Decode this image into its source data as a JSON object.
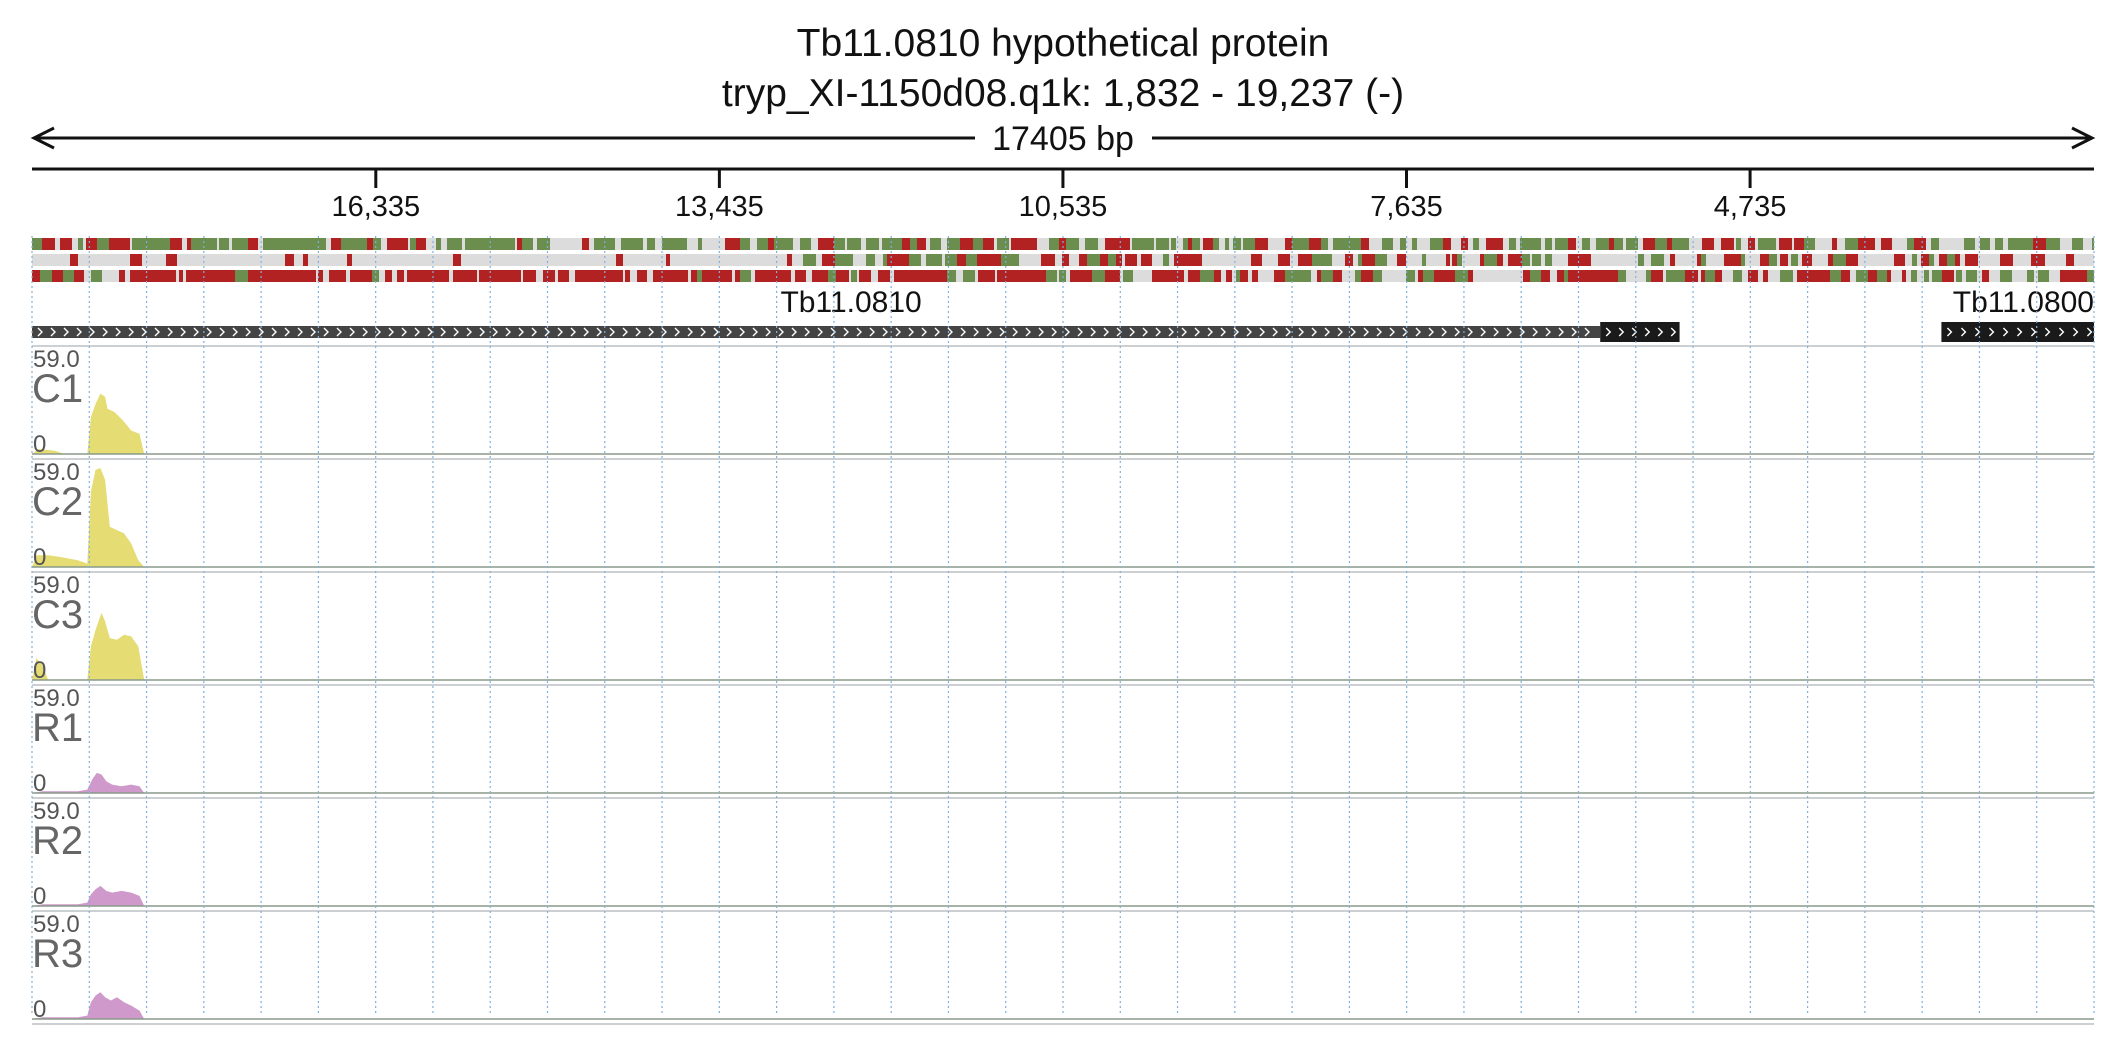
{
  "title": {
    "line1": "Tb11.0810  hypothetical protein",
    "line2": "tryp_XI-1150d08.q1k: 1,832 - 19,237 (-)"
  },
  "span_label": "17405 bp",
  "chart_data": {
    "type": "area",
    "genomic_range": {
      "start": 19237,
      "end": 1832,
      "strand": "-",
      "length_bp": 17405
    },
    "x_ticks": [
      16335,
      13435,
      10535,
      7635,
      4735
    ],
    "x_tick_labels": [
      "16,335",
      "13,435",
      "10,535",
      "7,635",
      "4,735"
    ],
    "colors": {
      "codon_red": "#b22222",
      "codon_green": "#6b8e4e",
      "codon_bg": "#dcdcdc",
      "gene_dark": "#444444",
      "gene_black": "#1a1a1a",
      "grid": "#7fb0df",
      "coverage_c": "#e5dc73",
      "coverage_r": "#cf99cb",
      "baseline": "#8a9a8a"
    },
    "genes": [
      {
        "name": "Tb11.0810",
        "start_bp": 19237,
        "end_bp": 5330,
        "utr_start_bp": 6000,
        "labeled": true
      },
      {
        "name": "Tb11.0800",
        "start_bp": 3120,
        "end_bp": 1832,
        "labeled": true
      }
    ],
    "tracks": [
      {
        "name": "C1",
        "max": "59.0",
        "min": "0",
        "color": "#e5dc73",
        "profile": [
          {
            "x": 19237,
            "y": 0
          },
          {
            "x": 19180,
            "y": 3
          },
          {
            "x": 19050,
            "y": 2
          },
          {
            "x": 18960,
            "y": 0
          },
          {
            "x": 18770,
            "y": 0
          },
          {
            "x": 18740,
            "y": 22
          },
          {
            "x": 18700,
            "y": 30
          },
          {
            "x": 18660,
            "y": 36
          },
          {
            "x": 18620,
            "y": 34
          },
          {
            "x": 18600,
            "y": 27
          },
          {
            "x": 18540,
            "y": 25
          },
          {
            "x": 18470,
            "y": 20
          },
          {
            "x": 18400,
            "y": 14
          },
          {
            "x": 18330,
            "y": 12
          },
          {
            "x": 18290,
            "y": 0
          }
        ]
      },
      {
        "name": "C2",
        "max": "59.0",
        "min": "0",
        "color": "#e5dc73",
        "profile": [
          {
            "x": 19237,
            "y": 0
          },
          {
            "x": 19200,
            "y": 7
          },
          {
            "x": 19100,
            "y": 7
          },
          {
            "x": 19000,
            "y": 6
          },
          {
            "x": 18850,
            "y": 4
          },
          {
            "x": 18770,
            "y": 2
          },
          {
            "x": 18740,
            "y": 45
          },
          {
            "x": 18700,
            "y": 58
          },
          {
            "x": 18660,
            "y": 59
          },
          {
            "x": 18620,
            "y": 52
          },
          {
            "x": 18580,
            "y": 24
          },
          {
            "x": 18520,
            "y": 22
          },
          {
            "x": 18460,
            "y": 20
          },
          {
            "x": 18400,
            "y": 14
          },
          {
            "x": 18340,
            "y": 4
          },
          {
            "x": 18290,
            "y": 0
          }
        ]
      },
      {
        "name": "C3",
        "max": "59.0",
        "min": "0",
        "color": "#e5dc73",
        "profile": [
          {
            "x": 19237,
            "y": 0
          },
          {
            "x": 19200,
            "y": 13
          },
          {
            "x": 19150,
            "y": 9
          },
          {
            "x": 19100,
            "y": 0
          },
          {
            "x": 18770,
            "y": 0
          },
          {
            "x": 18740,
            "y": 20
          },
          {
            "x": 18700,
            "y": 30
          },
          {
            "x": 18650,
            "y": 40
          },
          {
            "x": 18620,
            "y": 35
          },
          {
            "x": 18580,
            "y": 25
          },
          {
            "x": 18520,
            "y": 24
          },
          {
            "x": 18460,
            "y": 27
          },
          {
            "x": 18400,
            "y": 26
          },
          {
            "x": 18340,
            "y": 20
          },
          {
            "x": 18290,
            "y": 0
          }
        ]
      },
      {
        "name": "R1",
        "max": "59.0",
        "min": "0",
        "color": "#cf99cb",
        "profile": [
          {
            "x": 19237,
            "y": 0
          },
          {
            "x": 19150,
            "y": 1
          },
          {
            "x": 18850,
            "y": 1
          },
          {
            "x": 18770,
            "y": 2
          },
          {
            "x": 18730,
            "y": 8
          },
          {
            "x": 18690,
            "y": 12
          },
          {
            "x": 18650,
            "y": 11
          },
          {
            "x": 18610,
            "y": 7
          },
          {
            "x": 18560,
            "y": 5
          },
          {
            "x": 18480,
            "y": 4
          },
          {
            "x": 18400,
            "y": 5
          },
          {
            "x": 18330,
            "y": 4
          },
          {
            "x": 18290,
            "y": 0
          }
        ]
      },
      {
        "name": "R2",
        "max": "59.0",
        "min": "0",
        "color": "#cf99cb",
        "profile": [
          {
            "x": 19237,
            "y": 0
          },
          {
            "x": 19150,
            "y": 1
          },
          {
            "x": 18850,
            "y": 1
          },
          {
            "x": 18770,
            "y": 2
          },
          {
            "x": 18740,
            "y": 7
          },
          {
            "x": 18700,
            "y": 10
          },
          {
            "x": 18660,
            "y": 12
          },
          {
            "x": 18610,
            "y": 9
          },
          {
            "x": 18560,
            "y": 8
          },
          {
            "x": 18480,
            "y": 9
          },
          {
            "x": 18400,
            "y": 8
          },
          {
            "x": 18330,
            "y": 6
          },
          {
            "x": 18290,
            "y": 0
          }
        ]
      },
      {
        "name": "R3",
        "max": "59.0",
        "min": "0",
        "color": "#cf99cb",
        "profile": [
          {
            "x": 19237,
            "y": 0
          },
          {
            "x": 19150,
            "y": 1
          },
          {
            "x": 18850,
            "y": 1
          },
          {
            "x": 18770,
            "y": 2
          },
          {
            "x": 18740,
            "y": 10
          },
          {
            "x": 18700,
            "y": 14
          },
          {
            "x": 18660,
            "y": 16
          },
          {
            "x": 18620,
            "y": 13
          },
          {
            "x": 18570,
            "y": 11
          },
          {
            "x": 18520,
            "y": 13
          },
          {
            "x": 18460,
            "y": 10
          },
          {
            "x": 18400,
            "y": 8
          },
          {
            "x": 18330,
            "y": 5
          },
          {
            "x": 18290,
            "y": 0
          }
        ]
      }
    ]
  }
}
